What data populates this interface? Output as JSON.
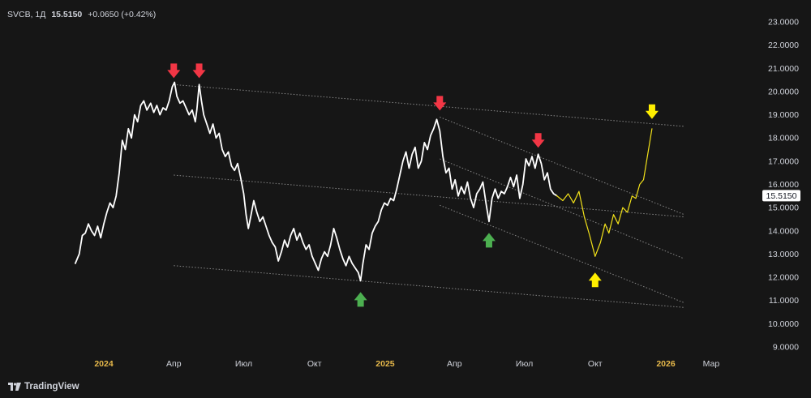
{
  "header": {
    "symbol": "SVCB, 1Д",
    "last": "15.5150",
    "change": "+0.0650 (+0.42%)"
  },
  "branding": {
    "name": "TradingView",
    "icon": "tradingview-logo-icon"
  },
  "colors": {
    "background": "#161616",
    "price_line": "#ffffff",
    "forecast": "#f3e21a",
    "channel": "#9a9a9a",
    "axis_text": "#d1d4dc",
    "axis_year": "#e6b84a",
    "sell_arrow": "#f23645",
    "buy_arrow": "#4caf50",
    "target_arrow": "#ffee00",
    "price_tag_bg": "#ffffff",
    "price_tag_text": "#131722"
  },
  "chart_data": {
    "type": "line",
    "title": "",
    "xlabel": "",
    "ylabel": "",
    "ylim": [
      8.6,
      23.4
    ],
    "grid": false,
    "last_price_label": "15.5150",
    "y_ticks": [
      "9.0000",
      "10.0000",
      "11.0000",
      "12.0000",
      "13.0000",
      "14.0000",
      "15.0000",
      "16.0000",
      "17.0000",
      "18.0000",
      "19.0000",
      "20.0000",
      "21.0000",
      "22.0000",
      "23.0000"
    ],
    "x_ticks": [
      {
        "label": "2024",
        "date": "2024-01-01",
        "year": true
      },
      {
        "label": "Апр",
        "date": "2024-04-01",
        "year": false
      },
      {
        "label": "Июл",
        "date": "2024-07-01",
        "year": false
      },
      {
        "label": "Окт",
        "date": "2024-10-01",
        "year": false
      },
      {
        "label": "2025",
        "date": "2025-01-01",
        "year": true
      },
      {
        "label": "Апр",
        "date": "2025-04-01",
        "year": false
      },
      {
        "label": "Июл",
        "date": "2025-07-01",
        "year": false
      },
      {
        "label": "Окт",
        "date": "2025-10-01",
        "year": false
      },
      {
        "label": "2026",
        "date": "2026-01-01",
        "year": true
      },
      {
        "label": "Мар",
        "date": "2026-03-01",
        "year": false
      }
    ],
    "series": [
      {
        "values": [
          [
            "2023-11-25",
            12.6
          ],
          [
            "2023-11-30",
            13.0
          ],
          [
            "2023-12-04",
            13.8
          ],
          [
            "2023-12-08",
            13.9
          ],
          [
            "2023-12-12",
            14.3
          ],
          [
            "2023-12-16",
            14.0
          ],
          [
            "2023-12-20",
            13.8
          ],
          [
            "2023-12-24",
            14.2
          ],
          [
            "2023-12-28",
            13.7
          ],
          [
            "2024-01-01",
            14.3
          ],
          [
            "2024-01-05",
            14.8
          ],
          [
            "2024-01-09",
            15.2
          ],
          [
            "2024-01-13",
            15.0
          ],
          [
            "2024-01-17",
            15.5
          ],
          [
            "2024-01-21",
            16.5
          ],
          [
            "2024-01-25",
            17.9
          ],
          [
            "2024-01-29",
            17.5
          ],
          [
            "2024-02-02",
            18.4
          ],
          [
            "2024-02-06",
            18.0
          ],
          [
            "2024-02-10",
            19.0
          ],
          [
            "2024-02-14",
            18.7
          ],
          [
            "2024-02-18",
            19.4
          ],
          [
            "2024-02-22",
            19.6
          ],
          [
            "2024-02-26",
            19.2
          ],
          [
            "2024-03-02",
            19.5
          ],
          [
            "2024-03-06",
            19.1
          ],
          [
            "2024-03-10",
            19.4
          ],
          [
            "2024-03-14",
            19.0
          ],
          [
            "2024-03-18",
            19.3
          ],
          [
            "2024-03-22",
            19.2
          ],
          [
            "2024-03-26",
            19.6
          ],
          [
            "2024-03-30",
            20.2
          ],
          [
            "2024-04-02",
            20.4
          ],
          [
            "2024-04-05",
            19.8
          ],
          [
            "2024-04-09",
            19.5
          ],
          [
            "2024-04-13",
            19.6
          ],
          [
            "2024-04-17",
            19.3
          ],
          [
            "2024-04-21",
            19.0
          ],
          [
            "2024-04-25",
            19.2
          ],
          [
            "2024-04-29",
            18.7
          ],
          [
            "2024-05-01",
            19.2
          ],
          [
            "2024-05-04",
            20.3
          ],
          [
            "2024-05-07",
            19.6
          ],
          [
            "2024-05-10",
            19.0
          ],
          [
            "2024-05-14",
            18.6
          ],
          [
            "2024-05-18",
            18.2
          ],
          [
            "2024-05-22",
            18.6
          ],
          [
            "2024-05-26",
            18.0
          ],
          [
            "2024-05-30",
            18.2
          ],
          [
            "2024-06-03",
            17.5
          ],
          [
            "2024-06-07",
            17.2
          ],
          [
            "2024-06-11",
            17.4
          ],
          [
            "2024-06-15",
            16.8
          ],
          [
            "2024-06-19",
            16.6
          ],
          [
            "2024-06-23",
            16.9
          ],
          [
            "2024-06-27",
            16.3
          ],
          [
            "2024-07-01",
            15.6
          ],
          [
            "2024-07-04",
            14.7
          ],
          [
            "2024-07-07",
            14.1
          ],
          [
            "2024-07-10",
            14.6
          ],
          [
            "2024-07-14",
            15.3
          ],
          [
            "2024-07-18",
            14.8
          ],
          [
            "2024-07-22",
            14.4
          ],
          [
            "2024-07-26",
            14.6
          ],
          [
            "2024-07-30",
            14.2
          ],
          [
            "2024-08-03",
            13.8
          ],
          [
            "2024-08-07",
            13.5
          ],
          [
            "2024-08-11",
            13.3
          ],
          [
            "2024-08-15",
            12.7
          ],
          [
            "2024-08-19",
            13.1
          ],
          [
            "2024-08-23",
            13.6
          ],
          [
            "2024-08-27",
            13.3
          ],
          [
            "2024-08-31",
            13.8
          ],
          [
            "2024-09-04",
            14.1
          ],
          [
            "2024-09-08",
            13.6
          ],
          [
            "2024-09-12",
            13.9
          ],
          [
            "2024-09-16",
            13.5
          ],
          [
            "2024-09-20",
            13.2
          ],
          [
            "2024-09-24",
            13.4
          ],
          [
            "2024-09-28",
            12.9
          ],
          [
            "2024-10-02",
            12.6
          ],
          [
            "2024-10-06",
            12.3
          ],
          [
            "2024-10-10",
            12.8
          ],
          [
            "2024-10-14",
            13.1
          ],
          [
            "2024-10-18",
            12.9
          ],
          [
            "2024-10-22",
            13.4
          ],
          [
            "2024-10-26",
            14.1
          ],
          [
            "2024-10-30",
            13.7
          ],
          [
            "2024-11-03",
            13.2
          ],
          [
            "2024-11-07",
            12.8
          ],
          [
            "2024-11-11",
            12.5
          ],
          [
            "2024-11-15",
            12.9
          ],
          [
            "2024-11-19",
            12.6
          ],
          [
            "2024-11-23",
            12.4
          ],
          [
            "2024-11-27",
            12.2
          ],
          [
            "2024-11-30",
            11.85
          ],
          [
            "2024-12-03",
            12.6
          ],
          [
            "2024-12-07",
            13.4
          ],
          [
            "2024-12-11",
            13.2
          ],
          [
            "2024-12-15",
            13.9
          ],
          [
            "2024-12-19",
            14.2
          ],
          [
            "2024-12-23",
            14.4
          ],
          [
            "2024-12-27",
            14.9
          ],
          [
            "2024-12-31",
            15.2
          ],
          [
            "2025-01-04",
            15.1
          ],
          [
            "2025-01-08",
            15.4
          ],
          [
            "2025-01-12",
            15.3
          ],
          [
            "2025-01-16",
            15.8
          ],
          [
            "2025-01-20",
            16.4
          ],
          [
            "2025-01-24",
            17.0
          ],
          [
            "2025-01-28",
            17.4
          ],
          [
            "2025-02-01",
            16.7
          ],
          [
            "2025-02-05",
            17.3
          ],
          [
            "2025-02-09",
            17.6
          ],
          [
            "2025-02-13",
            16.7
          ],
          [
            "2025-02-17",
            17.0
          ],
          [
            "2025-02-21",
            17.8
          ],
          [
            "2025-02-25",
            17.5
          ],
          [
            "2025-03-01",
            18.1
          ],
          [
            "2025-03-05",
            18.4
          ],
          [
            "2025-03-09",
            18.8
          ],
          [
            "2025-03-13",
            18.3
          ],
          [
            "2025-03-17",
            17.2
          ],
          [
            "2025-03-21",
            16.5
          ],
          [
            "2025-03-25",
            16.7
          ],
          [
            "2025-03-29",
            15.8
          ],
          [
            "2025-04-02",
            16.2
          ],
          [
            "2025-04-06",
            15.5
          ],
          [
            "2025-04-10",
            15.9
          ],
          [
            "2025-04-14",
            15.6
          ],
          [
            "2025-04-18",
            16.1
          ],
          [
            "2025-04-22",
            15.4
          ],
          [
            "2025-04-26",
            15.0
          ],
          [
            "2025-04-30",
            15.6
          ],
          [
            "2025-05-04",
            15.8
          ],
          [
            "2025-05-08",
            16.1
          ],
          [
            "2025-05-12",
            15.2
          ],
          [
            "2025-05-16",
            14.4
          ],
          [
            "2025-05-20",
            15.4
          ],
          [
            "2025-05-24",
            15.8
          ],
          [
            "2025-05-28",
            15.4
          ],
          [
            "2025-06-01",
            15.7
          ],
          [
            "2025-06-05",
            15.6
          ],
          [
            "2025-06-09",
            15.9
          ],
          [
            "2025-06-13",
            16.3
          ],
          [
            "2025-06-17",
            15.9
          ],
          [
            "2025-06-21",
            16.4
          ],
          [
            "2025-06-25",
            15.4
          ],
          [
            "2025-06-29",
            16.0
          ],
          [
            "2025-07-03",
            17.1
          ],
          [
            "2025-07-07",
            16.8
          ],
          [
            "2025-07-11",
            17.2
          ],
          [
            "2025-07-15",
            16.7
          ],
          [
            "2025-07-19",
            17.3
          ],
          [
            "2025-07-23",
            16.9
          ],
          [
            "2025-07-27",
            16.2
          ],
          [
            "2025-07-31",
            16.5
          ],
          [
            "2025-08-04",
            15.8
          ],
          [
            "2025-08-08",
            15.6
          ],
          [
            "2025-08-12",
            15.515
          ]
        ]
      },
      {
        "values": [
          [
            "2025-08-12",
            15.515
          ],
          [
            "2025-08-20",
            15.3
          ],
          [
            "2025-08-27",
            15.6
          ],
          [
            "2025-09-03",
            15.2
          ],
          [
            "2025-09-10",
            15.7
          ],
          [
            "2025-09-17",
            14.6
          ],
          [
            "2025-09-24",
            13.8
          ],
          [
            "2025-10-01",
            12.9
          ],
          [
            "2025-10-08",
            13.5
          ],
          [
            "2025-10-14",
            14.3
          ],
          [
            "2025-10-19",
            13.9
          ],
          [
            "2025-10-25",
            14.7
          ],
          [
            "2025-10-31",
            14.3
          ],
          [
            "2025-11-06",
            15.0
          ],
          [
            "2025-11-12",
            14.8
          ],
          [
            "2025-11-18",
            15.5
          ],
          [
            "2025-11-23",
            15.4
          ],
          [
            "2025-11-28",
            16.0
          ],
          [
            "2025-12-03",
            16.2
          ],
          [
            "2025-12-14",
            18.4
          ]
        ]
      }
    ],
    "channel_lines": [
      [
        [
          "2024-04-01",
          20.3
        ],
        [
          "2026-01-25",
          18.5
        ]
      ],
      [
        [
          "2024-04-01",
          16.4
        ],
        [
          "2026-01-25",
          14.6
        ]
      ],
      [
        [
          "2024-04-01",
          12.5
        ],
        [
          "2026-01-25",
          10.7
        ]
      ],
      [
        [
          "2025-03-13",
          18.9
        ],
        [
          "2026-01-25",
          14.7
        ]
      ],
      [
        [
          "2025-03-13",
          17.1
        ],
        [
          "2026-01-25",
          12.8
        ]
      ],
      [
        [
          "2025-03-13",
          15.1
        ],
        [
          "2026-01-25",
          10.9
        ]
      ]
    ],
    "markers": [
      {
        "kind": "sell",
        "date": "2024-04-01",
        "value": 20.3,
        "icon": "red-down-arrow-icon"
      },
      {
        "kind": "sell",
        "date": "2024-05-04",
        "value": 20.3,
        "icon": "red-down-arrow-icon"
      },
      {
        "kind": "sell",
        "date": "2025-03-13",
        "value": 18.9,
        "icon": "red-down-arrow-icon"
      },
      {
        "kind": "sell",
        "date": "2025-07-19",
        "value": 17.3,
        "icon": "red-down-arrow-icon"
      },
      {
        "kind": "buy",
        "date": "2024-11-30",
        "value": 11.85,
        "icon": "green-up-arrow-icon"
      },
      {
        "kind": "buy",
        "date": "2025-05-16",
        "value": 14.4,
        "icon": "green-up-arrow-icon"
      },
      {
        "kind": "target-low",
        "date": "2025-10-01",
        "value": 12.9,
        "icon": "yellow-up-arrow-icon"
      },
      {
        "kind": "target-high",
        "date": "2025-12-14",
        "value": 18.4,
        "icon": "yellow-down-arrow-icon"
      }
    ]
  }
}
